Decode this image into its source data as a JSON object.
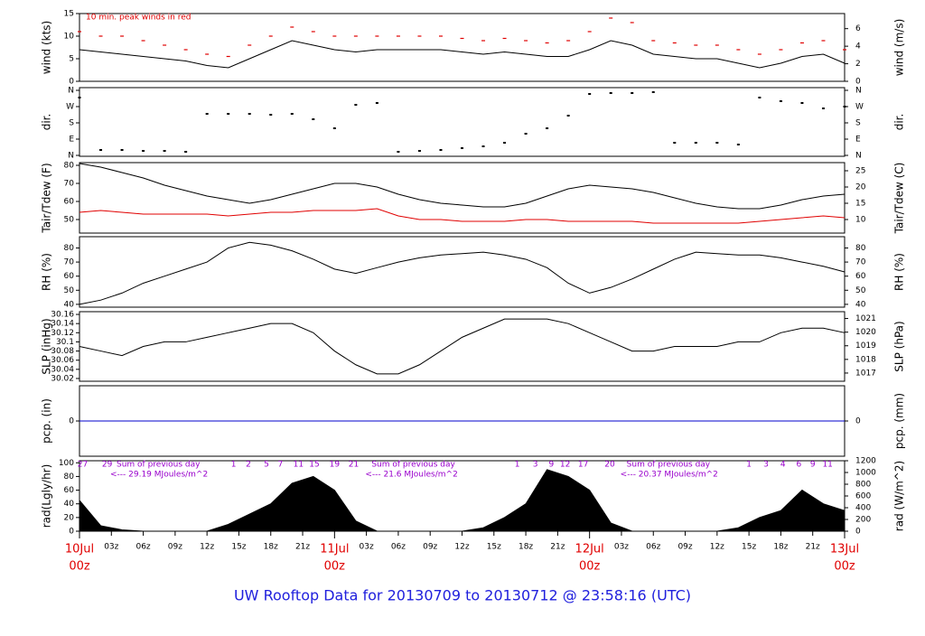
{
  "title": "UW Rooftop Data for 20130709  to  20130712 @ 23:58:16  (UTC)",
  "time_axis": {
    "xlim": [
      0,
      72
    ],
    "x": [
      0,
      2,
      4,
      6,
      8,
      10,
      12,
      14,
      16,
      18,
      20,
      22,
      24,
      26,
      28,
      30,
      32,
      34,
      36,
      38,
      40,
      42,
      44,
      46,
      48,
      50,
      52,
      54,
      56,
      58,
      60,
      62,
      64,
      66,
      68,
      70,
      72
    ],
    "xticks": [
      {
        "value": 3,
        "label": "03z"
      },
      {
        "value": 6,
        "label": "06z"
      },
      {
        "value": 9,
        "label": "09z"
      },
      {
        "value": 12,
        "label": "12z"
      },
      {
        "value": 15,
        "label": "15z"
      },
      {
        "value": 18,
        "label": "18z"
      },
      {
        "value": 21,
        "label": "21z"
      },
      {
        "value": 27,
        "label": "03z"
      },
      {
        "value": 30,
        "label": "06z"
      },
      {
        "value": 33,
        "label": "09z"
      },
      {
        "value": 36,
        "label": "12z"
      },
      {
        "value": 39,
        "label": "15z"
      },
      {
        "value": 42,
        "label": "18z"
      },
      {
        "value": 45,
        "label": "21z"
      },
      {
        "value": 51,
        "label": "03z"
      },
      {
        "value": 54,
        "label": "06z"
      },
      {
        "value": 57,
        "label": "09z"
      },
      {
        "value": 60,
        "label": "12z"
      },
      {
        "value": 63,
        "label": "15z"
      },
      {
        "value": 66,
        "label": "18z"
      },
      {
        "value": 69,
        "label": "21z"
      }
    ],
    "day_ticks": [
      {
        "value": 0,
        "label": "10Jul",
        "hour": "00z"
      },
      {
        "value": 24,
        "label": "11Jul",
        "hour": "00z"
      },
      {
        "value": 48,
        "label": "12Jul",
        "hour": "00z"
      },
      {
        "value": 72,
        "label": "13Jul",
        "hour": "00z"
      }
    ],
    "day_color": "#e00000"
  },
  "chart_data": [
    {
      "type": "line",
      "ylabel": "wind (kts)",
      "y2label": "wind (m/s)",
      "ylim": [
        0,
        15
      ],
      "yticks": [
        0,
        5,
        10,
        15
      ],
      "y2lim": [
        0,
        7.72
      ],
      "y2ticks": [
        0,
        2,
        4,
        6
      ],
      "note": "10 min. peak winds in red",
      "note_color": "#e00000",
      "series": [
        {
          "name": "wind",
          "color": "#000000",
          "mark": "line",
          "values": [
            7,
            6.5,
            6,
            5.5,
            5,
            4.5,
            3.5,
            3,
            5,
            7,
            9,
            8,
            7,
            6.5,
            7,
            7,
            7,
            7,
            6.5,
            6,
            6.5,
            6,
            5.5,
            5.5,
            7,
            9,
            8,
            6,
            5.5,
            5,
            5,
            4,
            3,
            4,
            5.5,
            6,
            4
          ]
        },
        {
          "name": "peak",
          "color": "#e00000",
          "mark": "dash",
          "values": [
            11,
            10,
            10,
            9,
            8,
            7,
            6,
            5.5,
            8,
            10,
            12,
            11,
            10,
            10,
            10,
            10,
            10,
            10,
            9.5,
            9,
            9.5,
            9,
            8.5,
            9,
            11,
            14,
            13,
            9,
            8.5,
            8,
            8,
            7,
            6,
            7,
            8.5,
            9,
            7
          ]
        }
      ]
    },
    {
      "type": "scatter",
      "ylabel": "dir.",
      "y2label": "dir.",
      "ylim": [
        -5,
        375
      ],
      "yticks": [
        {
          "value": 0,
          "label": "N"
        },
        {
          "value": 90,
          "label": "E"
        },
        {
          "value": 180,
          "label": "S"
        },
        {
          "value": 270,
          "label": "W"
        },
        {
          "value": 360,
          "label": "N"
        }
      ],
      "y2lim": [
        -5,
        375
      ],
      "y2ticks": [
        {
          "value": 0,
          "label": "N"
        },
        {
          "value": 90,
          "label": "E"
        },
        {
          "value": 180,
          "label": "S"
        },
        {
          "value": 270,
          "label": "W"
        },
        {
          "value": 360,
          "label": "N"
        }
      ],
      "series": [
        {
          "name": "direction",
          "color": "#000000",
          "mark": "dot",
          "values": [
            320,
            30,
            30,
            25,
            25,
            20,
            230,
            230,
            230,
            225,
            230,
            200,
            150,
            280,
            290,
            20,
            25,
            30,
            40,
            50,
            70,
            120,
            150,
            220,
            340,
            345,
            345,
            350,
            70,
            70,
            70,
            60,
            320,
            300,
            290,
            260,
            270
          ]
        }
      ]
    },
    {
      "type": "line",
      "ylabel": "Tair/Tdew (F)",
      "y2label": "Tair/Tdew (C)",
      "ylim": [
        42.5,
        81.5
      ],
      "yticks": [
        50,
        60,
        70,
        80
      ],
      "y2lim": [
        5.83,
        27.5
      ],
      "y2ticks": [
        10,
        15,
        20,
        25
      ],
      "series": [
        {
          "name": "Tair",
          "color": "#000000",
          "mark": "line",
          "values": [
            81,
            79,
            76,
            73,
            69,
            66,
            63,
            61,
            59,
            61,
            64,
            67,
            70,
            70,
            68,
            64,
            61,
            59,
            58,
            57,
            57,
            59,
            63,
            67,
            69,
            68,
            67,
            65,
            62,
            59,
            57,
            56,
            56,
            58,
            61,
            63,
            64
          ]
        },
        {
          "name": "Tdew",
          "color": "#e00000",
          "mark": "line",
          "values": [
            54,
            55,
            54,
            53,
            53,
            53,
            53,
            52,
            53,
            54,
            54,
            55,
            55,
            55,
            56,
            52,
            50,
            50,
            49,
            49,
            49,
            50,
            50,
            49,
            49,
            49,
            49,
            48,
            48,
            48,
            48,
            48,
            49,
            50,
            51,
            52,
            51
          ]
        }
      ]
    },
    {
      "type": "line",
      "ylabel": "RH (%)",
      "y2label": "RH (%)",
      "ylim": [
        38,
        88
      ],
      "yticks": [
        40,
        50,
        60,
        70,
        80
      ],
      "y2lim": [
        38,
        88
      ],
      "y2ticks": [
        40,
        50,
        60,
        70,
        80
      ],
      "series": [
        {
          "name": "RH",
          "color": "#000000",
          "mark": "line",
          "values": [
            40,
            43,
            48,
            55,
            60,
            65,
            70,
            80,
            84,
            82,
            78,
            72,
            65,
            62,
            66,
            70,
            73,
            75,
            76,
            77,
            75,
            72,
            66,
            55,
            48,
            52,
            58,
            65,
            72,
            77,
            76,
            75,
            75,
            73,
            70,
            67,
            63
          ]
        }
      ]
    },
    {
      "type": "line",
      "ylabel": "SLP (inHg)",
      "y2label": "SLP (hPa)",
      "ylim": [
        30.014,
        30.166
      ],
      "yticks": [
        30.02,
        30.04,
        30.06,
        30.08,
        30.1,
        30.12,
        30.14,
        30.16
      ],
      "y2lim": [
        1016.4,
        1021.5
      ],
      "y2ticks": [
        1017,
        1018,
        1019,
        1020,
        1021
      ],
      "series": [
        {
          "name": "SLP",
          "color": "#000000",
          "mark": "line",
          "values": [
            30.09,
            30.08,
            30.07,
            30.09,
            30.1,
            30.1,
            30.11,
            30.12,
            30.13,
            30.14,
            30.14,
            30.12,
            30.08,
            30.05,
            30.03,
            30.03,
            30.05,
            30.08,
            30.11,
            30.13,
            30.15,
            30.15,
            30.15,
            30.14,
            30.12,
            30.1,
            30.08,
            30.08,
            30.09,
            30.09,
            30.09,
            30.1,
            30.1,
            30.12,
            30.13,
            30.13,
            30.12
          ]
        }
      ]
    },
    {
      "type": "line",
      "ylabel": "pcp. (in)",
      "y2label": "pcp. (mm)",
      "ylim": [
        -0.1,
        0.1
      ],
      "yticks": [
        0
      ],
      "y2lim": [
        -2.54,
        2.54
      ],
      "y2ticks": [
        0
      ],
      "series": [
        {
          "name": "pcp",
          "color": "#0000cc",
          "mark": "line",
          "values": [
            0,
            0,
            0,
            0,
            0,
            0,
            0,
            0,
            0,
            0,
            0,
            0,
            0,
            0,
            0,
            0,
            0,
            0,
            0,
            0,
            0,
            0,
            0,
            0,
            0,
            0,
            0,
            0,
            0,
            0,
            0,
            0,
            0,
            0,
            0,
            0,
            0
          ]
        }
      ]
    },
    {
      "type": "area",
      "ylabel": "rad(Lgly/hr)",
      "y2label": "rad (W/m^2)",
      "ylim": [
        0,
        103
      ],
      "yticks": [
        0,
        20,
        40,
        60,
        80,
        100
      ],
      "y2lim": [
        0,
        1200
      ],
      "y2ticks": [
        0,
        200,
        400,
        600,
        800,
        1000,
        1200
      ],
      "note_color": "#9900cc",
      "hour_marks": [
        {
          "x": 0.3,
          "label": "27"
        },
        {
          "x": 2.6,
          "label": "29"
        },
        {
          "x": 14.5,
          "label": "1"
        },
        {
          "x": 15.9,
          "label": "2"
        },
        {
          "x": 17.6,
          "label": "5"
        },
        {
          "x": 18.9,
          "label": "7"
        },
        {
          "x": 20.6,
          "label": "11"
        },
        {
          "x": 22.1,
          "label": "15"
        },
        {
          "x": 24,
          "label": "19"
        },
        {
          "x": 25.8,
          "label": "21"
        },
        {
          "x": 41.2,
          "label": "1"
        },
        {
          "x": 42.9,
          "label": "3"
        },
        {
          "x": 44.4,
          "label": "9"
        },
        {
          "x": 45.7,
          "label": "12"
        },
        {
          "x": 47.4,
          "label": "17"
        },
        {
          "x": 49.9,
          "label": "20"
        },
        {
          "x": 63,
          "label": "1"
        },
        {
          "x": 64.6,
          "label": "3"
        },
        {
          "x": 66.2,
          "label": "4"
        },
        {
          "x": 67.7,
          "label": "6"
        },
        {
          "x": 69,
          "label": "9"
        },
        {
          "x": 70.4,
          "label": "11"
        }
      ],
      "daily_sums": [
        {
          "label": "Sum of previous day",
          "total": "<--- 29.19 MJoules/m^2"
        },
        {
          "label": "Sum of previous day",
          "total": "<--- 21.6 MJoules/m^2"
        },
        {
          "label": "Sum of previous day",
          "total": "<--- 20.37 MJoules/m^2"
        }
      ],
      "series": [
        {
          "name": "rad",
          "color": "#000000",
          "mark": "area",
          "values": [
            45,
            8,
            2,
            0,
            0,
            0,
            0,
            10,
            25,
            40,
            70,
            80,
            60,
            15,
            0,
            0,
            0,
            0,
            0,
            5,
            20,
            40,
            90,
            80,
            60,
            12,
            0,
            0,
            0,
            0,
            0,
            5,
            20,
            30,
            60,
            40,
            30
          ]
        }
      ]
    }
  ]
}
